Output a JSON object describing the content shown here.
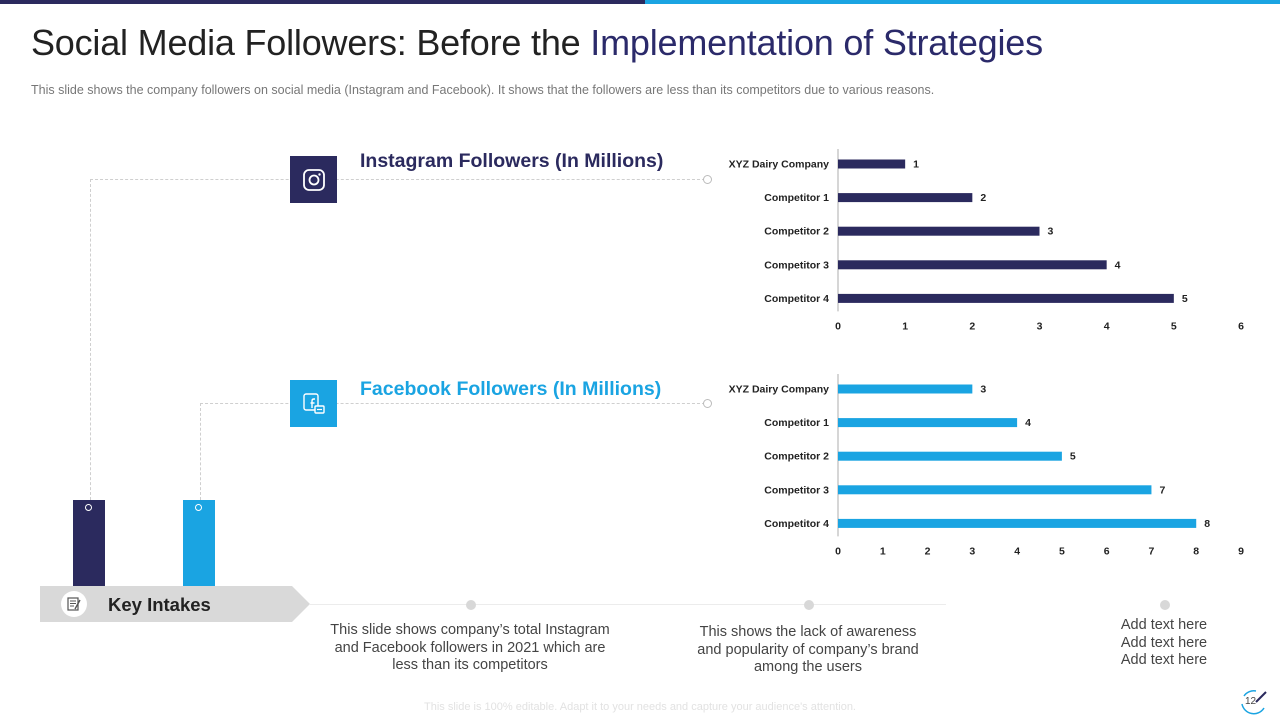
{
  "colors": {
    "dark": "#2b2a5e",
    "light": "#1aa4e2"
  },
  "title": {
    "part1": "Social Media Followers: Before the",
    "part2": "Implementation of Strategies"
  },
  "subtitle": "This slide shows the company followers on social media (Instagram and Facebook). It shows that the followers  are less than its competitors due to various reasons.",
  "sections": {
    "instagram": {
      "title": "Instagram Followers (In Millions)",
      "icon": "instagram-icon"
    },
    "facebook": {
      "title": "Facebook Followers (In Millions)",
      "icon": "facebook-icon"
    }
  },
  "key_intakes": {
    "label": "Key Intakes",
    "icon": "notepad-icon",
    "items": [
      {
        "text": "This slide shows company’s total Instagram and Facebook followers in 2021 which are less than its competitors"
      },
      {
        "text": "This shows the lack of awareness and popularity of company’s brand among the users"
      },
      {
        "text": "Add text here\nAdd text here\nAdd text here"
      }
    ]
  },
  "footer": "This slide is 100% editable. Adapt it to your needs and capture your audience's attention.",
  "page_number": "12",
  "chart_data": [
    {
      "type": "bar",
      "orientation": "horizontal",
      "title": "Instagram Followers (In Millions)",
      "categories": [
        "XYZ Dairy Company",
        "Competitor 1",
        "Competitor 2",
        "Competitor 3",
        "Competitor 4"
      ],
      "values": [
        1,
        2,
        3,
        4,
        5
      ],
      "xlim": [
        0,
        6
      ],
      "ticks": [
        0,
        1,
        2,
        3,
        4,
        5,
        6
      ],
      "color": "#2b2a5e"
    },
    {
      "type": "bar",
      "orientation": "horizontal",
      "title": "Facebook Followers (In Millions)",
      "categories": [
        "XYZ Dairy Company",
        "Competitor 1",
        "Competitor 2",
        "Competitor 3",
        "Competitor 4"
      ],
      "values": [
        3,
        4,
        5,
        7,
        8
      ],
      "xlim": [
        0,
        9
      ],
      "ticks": [
        0,
        1,
        2,
        3,
        4,
        5,
        6,
        7,
        8,
        9
      ],
      "color": "#1aa4e2"
    }
  ]
}
